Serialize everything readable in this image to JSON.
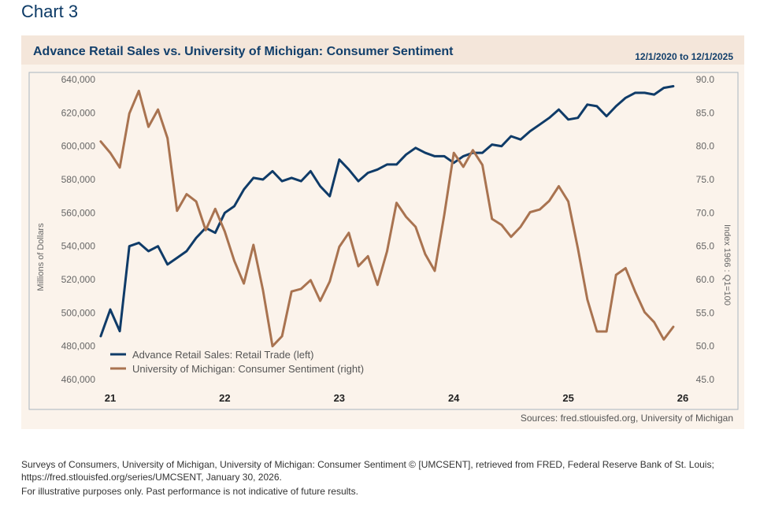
{
  "heading": "Chart 3",
  "card": {
    "title": "Advance Retail Sales vs. University of Michigan: Consumer Sentiment",
    "date_range": "12/1/2020 to 12/1/2025",
    "source": "Sources: fred.stlouisfed.org, University of Michigan"
  },
  "footnotes": {
    "line1": "Surveys of Consumers, University of Michigan, University of Michigan: Consumer Sentiment © [UMCSENT], retrieved from FRED, Federal Reserve Bank of St. Louis;",
    "line2": "https://fred.stlouisfed.org/series/UMCSENT, January 30, 2026.",
    "line3": "For illustrative purposes only. Past performance is not indicative of future results."
  },
  "chart_data": {
    "type": "line",
    "title": "Advance Retail Sales vs. University of Michigan: Consumer Sentiment",
    "xlabel": "",
    "ylabel_left": "Millions of Dollars",
    "ylabel_right": "Index 1966 : Q1=100",
    "x_ticks": [
      "21",
      "22",
      "23",
      "24",
      "25",
      "26"
    ],
    "x_range": [
      2021,
      2026
    ],
    "y_left": {
      "range": [
        460000,
        640000
      ],
      "ticks": [
        "460,000",
        "480,000",
        "500,000",
        "520,000",
        "540,000",
        "560,000",
        "580,000",
        "600,000",
        "620,000",
        "640,000"
      ]
    },
    "y_right": {
      "range": [
        45,
        90
      ],
      "ticks": [
        "45.0",
        "50.0",
        "55.0",
        "60.0",
        "65.0",
        "70.0",
        "75.0",
        "80.0",
        "85.0",
        "90.0"
      ]
    },
    "grid": false,
    "legend_position": "bottom-left",
    "series": [
      {
        "name": "Advance Retail Sales: Retail Trade (left)",
        "axis": "left",
        "color": "#0f3b68",
        "x": [
          "2020-12",
          "2021-01",
          "2021-02",
          "2021-03",
          "2021-04",
          "2021-05",
          "2021-06",
          "2021-07",
          "2021-08",
          "2021-09",
          "2021-10",
          "2021-11",
          "2021-12",
          "2022-01",
          "2022-02",
          "2022-03",
          "2022-04",
          "2022-05",
          "2022-06",
          "2022-07",
          "2022-08",
          "2022-09",
          "2022-10",
          "2022-11",
          "2022-12",
          "2023-01",
          "2023-02",
          "2023-03",
          "2023-04",
          "2023-05",
          "2023-06",
          "2023-07",
          "2023-08",
          "2023-09",
          "2023-10",
          "2023-11",
          "2023-12",
          "2024-01",
          "2024-02",
          "2024-03",
          "2024-04",
          "2024-05",
          "2024-06",
          "2024-07",
          "2024-08",
          "2024-09",
          "2024-10",
          "2024-11",
          "2024-12",
          "2025-01",
          "2025-02",
          "2025-03",
          "2025-04",
          "2025-05",
          "2025-06",
          "2025-07",
          "2025-08",
          "2025-09",
          "2025-10",
          "2025-11",
          "2025-12"
        ],
        "values": [
          486000,
          502000,
          489000,
          540000,
          542000,
          537000,
          540000,
          529000,
          533000,
          537000,
          545000,
          551000,
          548000,
          560000,
          564000,
          574000,
          581000,
          580000,
          585000,
          579000,
          581000,
          579000,
          585000,
          576000,
          570000,
          592000,
          586000,
          579000,
          584000,
          586000,
          589000,
          589000,
          595000,
          599000,
          596000,
          594000,
          594000,
          590000,
          594000,
          596000,
          596000,
          601000,
          600000,
          606000,
          604000,
          609000,
          613000,
          617000,
          622000,
          616000,
          617000,
          625000,
          624000,
          618000,
          624000,
          629000,
          632000,
          632000,
          631000,
          635000,
          636000
        ]
      },
      {
        "name": "University of Michigan: Consumer Sentiment (right)",
        "axis": "right",
        "color": "#a97350",
        "x": [
          "2020-12",
          "2021-01",
          "2021-02",
          "2021-03",
          "2021-04",
          "2021-05",
          "2021-06",
          "2021-07",
          "2021-08",
          "2021-09",
          "2021-10",
          "2021-11",
          "2021-12",
          "2022-01",
          "2022-02",
          "2022-03",
          "2022-04",
          "2022-05",
          "2022-06",
          "2022-07",
          "2022-08",
          "2022-09",
          "2022-10",
          "2022-11",
          "2022-12",
          "2023-01",
          "2023-02",
          "2023-03",
          "2023-04",
          "2023-05",
          "2023-06",
          "2023-07",
          "2023-08",
          "2023-09",
          "2023-10",
          "2023-11",
          "2023-12",
          "2024-01",
          "2024-02",
          "2024-03",
          "2024-04",
          "2024-05",
          "2024-06",
          "2024-07",
          "2024-08",
          "2024-09",
          "2024-10",
          "2024-11",
          "2024-12",
          "2025-01",
          "2025-02",
          "2025-03",
          "2025-04",
          "2025-05",
          "2025-06",
          "2025-07",
          "2025-08",
          "2025-09",
          "2025-10",
          "2025-11",
          "2025-12"
        ],
        "values": [
          80.7,
          79.0,
          76.8,
          84.9,
          88.3,
          82.9,
          85.5,
          81.2,
          70.3,
          72.8,
          71.7,
          67.4,
          70.6,
          67.2,
          62.8,
          59.4,
          65.2,
          58.4,
          50.0,
          51.5,
          58.2,
          58.6,
          59.9,
          56.8,
          59.7,
          64.9,
          67.0,
          62.0,
          63.5,
          59.2,
          64.2,
          71.5,
          69.4,
          67.9,
          63.8,
          61.3,
          69.7,
          79.0,
          76.9,
          79.4,
          77.2,
          69.1,
          68.2,
          66.4,
          67.9,
          70.1,
          70.5,
          71.8,
          74.0,
          71.7,
          64.7,
          57.0,
          52.2,
          52.2,
          60.7,
          61.7,
          58.2,
          55.1,
          53.6,
          51.0,
          52.9
        ]
      }
    ]
  }
}
